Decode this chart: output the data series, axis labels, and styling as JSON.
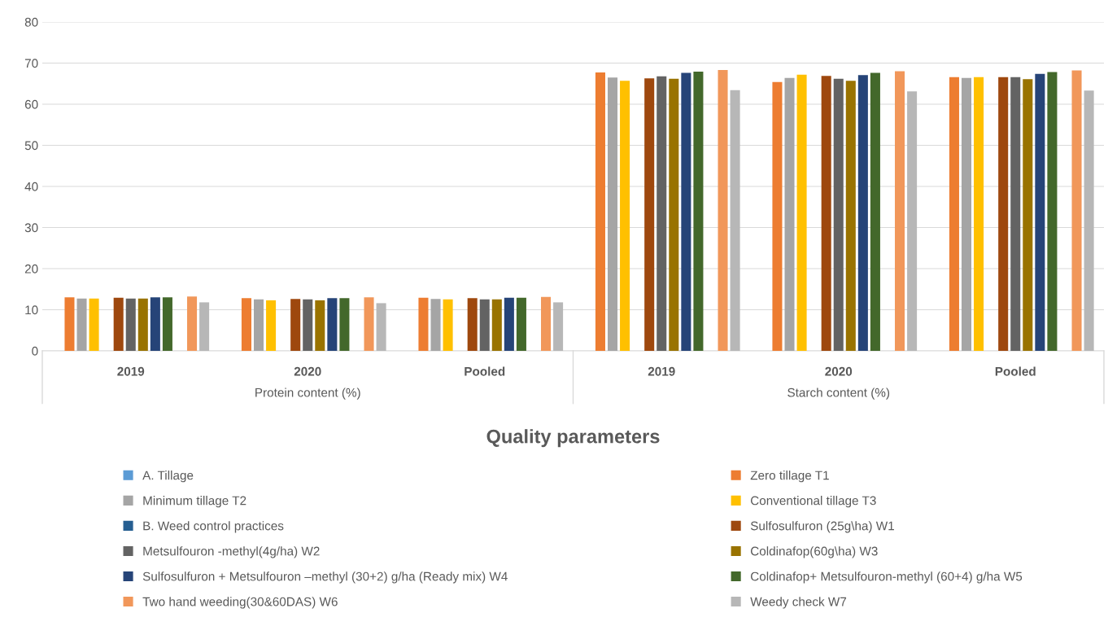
{
  "chart_data": {
    "type": "bar",
    "xlabel": "Quality parameters",
    "categories": [
      "2019",
      "2020",
      "Pooled",
      "2019",
      "2020",
      "Pooled"
    ],
    "annotations": [
      "Protein content (%)",
      "Starch content (%)"
    ],
    "ylim": [
      0,
      80
    ],
    "yticks": [
      0,
      10,
      20,
      30,
      40,
      50,
      60,
      70,
      80
    ],
    "grid": "y",
    "legend": "bottom",
    "series": [
      {
        "name": "A. Tillage",
        "color": "#5b9bd5",
        "values": [
          null,
          null,
          null,
          null,
          null,
          null
        ]
      },
      {
        "name": "Zero tillage T1",
        "color": "#ed7d31",
        "values": [
          13.0,
          12.8,
          12.9,
          67.7,
          65.4,
          66.6
        ]
      },
      {
        "name": "Minimum tillage T2",
        "color": "#a5a5a5",
        "values": [
          12.7,
          12.5,
          12.6,
          66.5,
          66.4,
          66.4
        ]
      },
      {
        "name": "Conventional tillage T3",
        "color": "#ffc000",
        "values": [
          12.7,
          12.3,
          12.5,
          65.7,
          67.2,
          66.6
        ]
      },
      {
        "name": "B. Weed control practices",
        "color": "#255e91",
        "values": [
          null,
          null,
          null,
          null,
          null,
          null
        ]
      },
      {
        "name": "Sulfosulfuron (25g\\ha) W1",
        "color": "#9e480e",
        "values": [
          12.9,
          12.6,
          12.8,
          66.3,
          66.9,
          66.6
        ]
      },
      {
        "name": "Metsulfouron -methyl(4g/ha) W2",
        "color": "#636363",
        "values": [
          12.7,
          12.5,
          12.5,
          66.8,
          66.2,
          66.6
        ]
      },
      {
        "name": "Coldinafop(60g\\ha) W3",
        "color": "#997300",
        "values": [
          12.7,
          12.3,
          12.5,
          66.2,
          65.7,
          66.1
        ]
      },
      {
        "name": "Sulfosulfuron + Metsulfouron –methyl (30+2) g/ha (Ready mix) W4",
        "color": "#264478",
        "values": [
          13.0,
          12.8,
          12.9,
          67.6,
          67.1,
          67.4
        ]
      },
      {
        "name": "Coldinafop+ Metsulfouron-methyl (60+4) g/ha W5",
        "color": "#43682b",
        "values": [
          13.0,
          12.8,
          12.9,
          67.9,
          67.6,
          67.8
        ]
      },
      {
        "color": "#d9d9d9",
        "values": [
          null,
          null,
          null,
          null,
          null,
          null
        ]
      },
      {
        "name": "Two hand weeding(30&60DAS) W6",
        "color": "#f1975a",
        "values": [
          13.2,
          13.0,
          13.1,
          68.3,
          68.0,
          68.2
        ]
      },
      {
        "name": "Weedy check W7",
        "color": "#b7b7b7",
        "values": [
          11.8,
          11.6,
          11.8,
          63.4,
          63.1,
          63.3
        ]
      }
    ]
  }
}
